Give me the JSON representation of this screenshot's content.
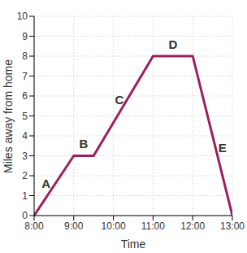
{
  "chart_data": {
    "type": "line",
    "x_label": "Time",
    "y_label": "Miles away from home",
    "x": [
      8,
      9,
      9.5,
      11,
      12,
      13
    ],
    "values": [
      0,
      3,
      3,
      8,
      8,
      0
    ],
    "color": "#9c1f5e",
    "xlim": [
      8,
      13
    ],
    "ylim": [
      0,
      10
    ],
    "xticks": [
      {
        "value": 8,
        "label": "8:00"
      },
      {
        "value": 9,
        "label": "9:00"
      },
      {
        "value": 10,
        "label": "10:00"
      },
      {
        "value": 11,
        "label": "11:00"
      },
      {
        "value": 12,
        "label": "12:00"
      },
      {
        "value": 13,
        "label": "13:00"
      }
    ],
    "yticks": [
      0,
      1,
      2,
      3,
      4,
      5,
      6,
      7,
      8,
      9,
      10
    ],
    "grid": true,
    "annotations": [
      {
        "text": "A",
        "x": 8.3,
        "y": 1.6
      },
      {
        "text": "B",
        "x": 9.25,
        "y": 3.6
      },
      {
        "text": "C",
        "x": 10.15,
        "y": 5.8
      },
      {
        "text": "D",
        "x": 11.5,
        "y": 8.6
      },
      {
        "text": "E",
        "x": 12.75,
        "y": 3.4
      }
    ]
  }
}
